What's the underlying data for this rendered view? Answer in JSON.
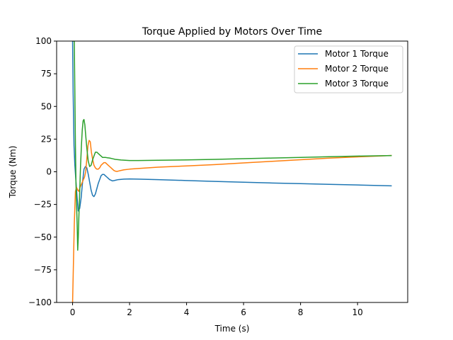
{
  "chart_data": {
    "type": "line",
    "title": "Torque Applied by Motors Over Time",
    "xlabel": "Time (s)",
    "ylabel": "Torque (Nm)",
    "xlim": [
      -0.56,
      11.76
    ],
    "ylim": [
      -100,
      100
    ],
    "xticks": [
      0,
      2,
      4,
      6,
      8,
      10
    ],
    "yticks": [
      -100,
      -75,
      -50,
      -25,
      0,
      25,
      50,
      75,
      100
    ],
    "grid": false,
    "legend_position": "top-right",
    "series": [
      {
        "name": "Motor 1 Torque",
        "color": "#1f77b4",
        "x": [
          0.0,
          0.02,
          0.05,
          0.08,
          0.12,
          0.16,
          0.2,
          0.25,
          0.3,
          0.35,
          0.4,
          0.45,
          0.5,
          0.55,
          0.6,
          0.65,
          0.7,
          0.75,
          0.8,
          0.85,
          0.9,
          0.95,
          1.0,
          1.05,
          1.1,
          1.15,
          1.2,
          1.25,
          1.3,
          1.35,
          1.4,
          1.45,
          1.5,
          1.6,
          1.7,
          1.8,
          2.0,
          2.3,
          3.0,
          4.0,
          5.0,
          6.0,
          7.0,
          8.0,
          9.0,
          10.0,
          11.2
        ],
        "y": [
          100,
          60,
          20,
          5,
          -8,
          -20,
          -30,
          -28,
          -20,
          -8,
          2,
          4,
          3,
          -2,
          -8,
          -14,
          -18,
          -19,
          -17,
          -13,
          -9,
          -6,
          -3,
          -2,
          -2,
          -3,
          -4,
          -5,
          -6,
          -6.5,
          -7,
          -6.8,
          -6.5,
          -6,
          -5.8,
          -5.6,
          -5.5,
          -5.6,
          -6,
          -6.7,
          -7.4,
          -8,
          -8.6,
          -9.1,
          -9.6,
          -10.1,
          -10.8
        ]
      },
      {
        "name": "Motor 2 Torque",
        "color": "#ff7f0e",
        "x": [
          0.0,
          0.03,
          0.06,
          0.1,
          0.14,
          0.18,
          0.22,
          0.26,
          0.3,
          0.34,
          0.38,
          0.42,
          0.46,
          0.5,
          0.54,
          0.58,
          0.62,
          0.66,
          0.7,
          0.75,
          0.8,
          0.85,
          0.9,
          0.95,
          1.0,
          1.05,
          1.1,
          1.15,
          1.2,
          1.25,
          1.3,
          1.35,
          1.4,
          1.45,
          1.5,
          1.55,
          1.6,
          1.7,
          1.8,
          2.0,
          2.3,
          3.0,
          4.0,
          5.0,
          6.0,
          7.0,
          8.0,
          9.0,
          10.0,
          11.2
        ],
        "y": [
          -100,
          -70,
          -40,
          -15,
          -12,
          -14,
          -15,
          -12,
          -10,
          -8,
          -6,
          -4,
          0,
          10,
          20,
          24,
          23,
          15,
          10,
          5,
          3,
          2,
          2,
          3,
          5,
          6,
          7,
          7,
          6,
          5,
          4,
          3,
          2,
          1,
          0.5,
          0.3,
          0.5,
          1,
          1.5,
          2,
          2.5,
          3.5,
          4.5,
          5.5,
          6.8,
          8,
          9.2,
          10.4,
          11.4,
          12.5
        ]
      },
      {
        "name": "Motor 3 Torque",
        "color": "#2ca02c",
        "x": [
          0.0,
          0.02,
          0.04,
          0.06,
          0.08,
          0.1,
          0.12,
          0.14,
          0.16,
          0.18,
          0.2,
          0.22,
          0.25,
          0.28,
          0.31,
          0.34,
          0.37,
          0.4,
          0.43,
          0.46,
          0.5,
          0.55,
          0.6,
          0.65,
          0.7,
          0.75,
          0.8,
          0.85,
          0.9,
          0.95,
          1.0,
          1.05,
          1.1,
          1.15,
          1.2,
          1.3,
          1.4,
          1.5,
          1.7,
          2.0,
          2.3,
          3.0,
          4.0,
          5.0,
          6.0,
          7.0,
          8.0,
          9.0,
          10.0,
          11.2
        ],
        "y": [
          100,
          100,
          100,
          100,
          60,
          20,
          -10,
          -25,
          -40,
          -60,
          -50,
          -35,
          -15,
          5,
          20,
          32,
          39,
          40,
          36,
          28,
          18,
          8,
          4,
          5,
          9,
          12,
          15,
          15,
          14,
          13,
          12,
          11,
          11,
          11,
          10.8,
          10.5,
          10,
          9.5,
          9,
          8.6,
          8.6,
          8.8,
          9.1,
          9.5,
          10,
          10.5,
          11,
          11.5,
          12,
          12.4
        ]
      }
    ]
  }
}
